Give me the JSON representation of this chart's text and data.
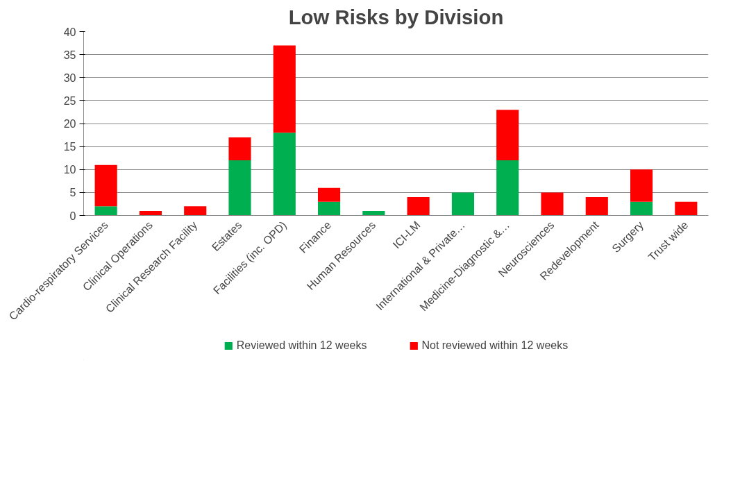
{
  "chart_data": {
    "type": "bar",
    "title": "Low Risks by Division",
    "stacked": true,
    "categories": [
      "Cardio-respiratory Services",
      "Clinical Operations",
      "Clinical Research Facility",
      "Estates",
      "Facilities (inc. OPD)",
      "Finance",
      "Human Resources",
      "ICI-LM",
      "International & Private…",
      "Medicine-Diagnostic &…",
      "Neurosciences",
      "Redevelopment",
      "Surgery",
      "Trust wide"
    ],
    "series": [
      {
        "name": "Reviewed within 12 weeks",
        "color": "#00b050",
        "values": [
          2,
          0,
          0,
          12,
          18,
          3,
          1,
          0,
          5,
          12,
          0,
          0,
          3,
          0
        ]
      },
      {
        "name": "Not reviewed within 12 weeks",
        "color": "#ff0000",
        "values": [
          9,
          1,
          2,
          5,
          19,
          3,
          0,
          4,
          0,
          11,
          5,
          4,
          7,
          3
        ]
      }
    ],
    "ylim": [
      0,
      40
    ],
    "yticks": [
      0,
      5,
      10,
      15,
      20,
      25,
      30,
      35,
      40
    ],
    "grid": "y",
    "legend": "bottom"
  }
}
